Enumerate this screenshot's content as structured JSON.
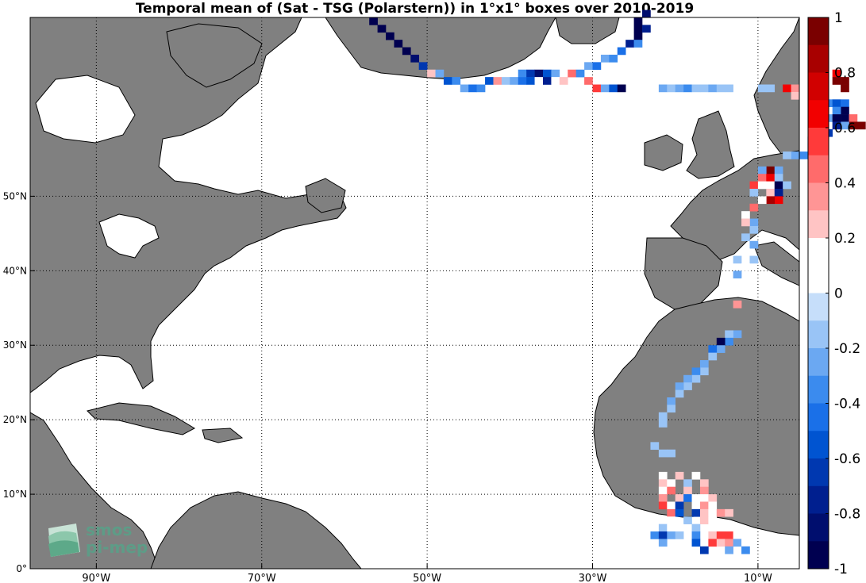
{
  "chart_data": {
    "type": "heatmap",
    "title": "Temporal mean of (Sat - TSG (Polarstern)) in 1°x1° boxes over 2010-2019",
    "xlabel": "",
    "ylabel": "",
    "x_ticks": [
      "90°W",
      "70°W",
      "50°W",
      "30°W",
      "10°W"
    ],
    "y_ticks": [
      "0°",
      "10°N",
      "20°N",
      "30°N",
      "40°N",
      "50°N"
    ],
    "xlim": [
      -98,
      -5
    ],
    "ylim": [
      0,
      74
    ],
    "grid": true,
    "colorbar": {
      "ticks": [
        "1",
        "0.8",
        "0.6",
        "0.4",
        "0.2",
        "0",
        "-0.2",
        "-0.4",
        "-0.6",
        "-0.8",
        "-1"
      ],
      "range": [
        -1,
        1
      ],
      "colors": [
        "#7a0000",
        "#a80000",
        "#d10000",
        "#f20000",
        "#ff3a3a",
        "#ff6b6b",
        "#ff9595",
        "#ffc4c4",
        "#ffffff",
        "#ffffff",
        "#c6defa",
        "#99c4f6",
        "#6ba8f2",
        "#3b8bee",
        "#1a70e8",
        "#0054d1",
        "#0038b0",
        "#001f8f",
        "#000e6e",
        "#000050"
      ]
    },
    "cells": [
      {
        "lon": -57,
        "lat": 73,
        "value": -0.95
      },
      {
        "lon": -56,
        "lat": 72,
        "value": -0.95
      },
      {
        "lon": -55,
        "lat": 71,
        "value": -0.9
      },
      {
        "lon": -54,
        "lat": 70,
        "value": -0.95
      },
      {
        "lon": -53,
        "lat": 69,
        "value": -0.9
      },
      {
        "lon": -52,
        "lat": 68,
        "value": -0.85
      },
      {
        "lon": -51,
        "lat": 67,
        "value": -0.6
      },
      {
        "lon": -50,
        "lat": 66,
        "value": 0.25
      },
      {
        "lon": -49,
        "lat": 66,
        "value": -0.2
      },
      {
        "lon": -48,
        "lat": 65,
        "value": -0.5
      },
      {
        "lon": -47,
        "lat": 65,
        "value": -0.3
      },
      {
        "lon": -46,
        "lat": 64,
        "value": -0.2
      },
      {
        "lon": -45,
        "lat": 64,
        "value": -0.45
      },
      {
        "lon": -44,
        "lat": 64,
        "value": -0.3
      },
      {
        "lon": -43,
        "lat": 65,
        "value": -0.55
      },
      {
        "lon": -42,
        "lat": 65,
        "value": 0.35
      },
      {
        "lon": -41,
        "lat": 65,
        "value": -0.15
      },
      {
        "lon": -40,
        "lat": 65,
        "value": -0.2
      },
      {
        "lon": -39,
        "lat": 66,
        "value": -0.3
      },
      {
        "lon": -38,
        "lat": 66,
        "value": -0.6
      },
      {
        "lon": -37,
        "lat": 66,
        "value": -0.8
      },
      {
        "lon": -36,
        "lat": 66,
        "value": -0.55
      },
      {
        "lon": -35,
        "lat": 66,
        "value": -0.2
      },
      {
        "lon": -39,
        "lat": 65,
        "value": -0.4
      },
      {
        "lon": -38,
        "lat": 65,
        "value": -0.5
      },
      {
        "lon": -37,
        "lat": 65,
        "value": 0.2
      },
      {
        "lon": -36,
        "lat": 65,
        "value": -0.7
      },
      {
        "lon": -35,
        "lat": 65,
        "value": 0.15
      },
      {
        "lon": -34,
        "lat": 65,
        "value": 0.3
      },
      {
        "lon": -33,
        "lat": 66,
        "value": 0.45
      },
      {
        "lon": -32,
        "lat": 66,
        "value": -0.3
      },
      {
        "lon": -31,
        "lat": 65,
        "value": 0.5
      },
      {
        "lon": -30,
        "lat": 64,
        "value": 0.6
      },
      {
        "lon": -29,
        "lat": 64,
        "value": -0.2
      },
      {
        "lon": -28,
        "lat": 64,
        "value": -0.5
      },
      {
        "lon": -27,
        "lat": 64,
        "value": -0.9
      },
      {
        "lon": -31,
        "lat": 67,
        "value": -0.25
      },
      {
        "lon": -30,
        "lat": 67,
        "value": -0.4
      },
      {
        "lon": -29,
        "lat": 68,
        "value": -0.2
      },
      {
        "lon": -28,
        "lat": 68,
        "value": -0.3
      },
      {
        "lon": -27,
        "lat": 69,
        "value": -0.45
      },
      {
        "lon": -26,
        "lat": 70,
        "value": -0.7
      },
      {
        "lon": -25,
        "lat": 71,
        "value": -0.95
      },
      {
        "lon": -25,
        "lat": 72,
        "value": -0.95
      },
      {
        "lon": -24,
        "lat": 72,
        "value": -0.7
      },
      {
        "lon": -25,
        "lat": 73,
        "value": -0.9
      },
      {
        "lon": -24,
        "lat": 74,
        "value": -0.85
      },
      {
        "lon": -25,
        "lat": 70,
        "value": -0.3
      },
      {
        "lon": -22,
        "lat": 64,
        "value": -0.2
      },
      {
        "lon": -21,
        "lat": 64,
        "value": -0.15
      },
      {
        "lon": -20,
        "lat": 64,
        "value": -0.2
      },
      {
        "lon": -19,
        "lat": 64,
        "value": -0.3
      },
      {
        "lon": -18,
        "lat": 64,
        "value": -0.15
      },
      {
        "lon": -17,
        "lat": 64,
        "value": -0.15
      },
      {
        "lon": -16,
        "lat": 64,
        "value": -0.2
      },
      {
        "lon": -15,
        "lat": 64,
        "value": -0.15
      },
      {
        "lon": -14,
        "lat": 64,
        "value": -0.15
      },
      {
        "lon": -10,
        "lat": 64,
        "value": -0.15
      },
      {
        "lon": -9,
        "lat": 64,
        "value": -0.15
      },
      {
        "lon": -7,
        "lat": 64,
        "value": 0.7
      },
      {
        "lon": -6,
        "lat": 64,
        "value": 0.35
      },
      {
        "lon": -6,
        "lat": 63,
        "value": 0.3
      },
      {
        "lon": -1,
        "lat": 66,
        "value": 0.7
      },
      {
        "lon": -1,
        "lat": 65,
        "value": 0.95
      },
      {
        "lon": 0,
        "lat": 65,
        "value": 0.95
      },
      {
        "lon": 0,
        "lat": 64,
        "value": 0.9
      },
      {
        "lon": -2,
        "lat": 62,
        "value": -0.3
      },
      {
        "lon": -1,
        "lat": 62,
        "value": -0.5
      },
      {
        "lon": 0,
        "lat": 62,
        "value": -0.45
      },
      {
        "lon": 0,
        "lat": 61,
        "value": -0.9
      },
      {
        "lon": -1,
        "lat": 61,
        "value": -0.35
      },
      {
        "lon": -2,
        "lat": 60,
        "value": -0.2
      },
      {
        "lon": -1,
        "lat": 60,
        "value": -0.95
      },
      {
        "lon": 0,
        "lat": 60,
        "value": -0.95
      },
      {
        "lon": 1,
        "lat": 60,
        "value": 0.5
      },
      {
        "lon": 2,
        "lat": 59,
        "value": 0.9
      },
      {
        "lon": 1,
        "lat": 59,
        "value": 0.9
      },
      {
        "lon": 0,
        "lat": 59,
        "value": -0.2
      },
      {
        "lon": -1,
        "lat": 59,
        "value": -0.7
      },
      {
        "lon": -2,
        "lat": 58,
        "value": -0.6
      },
      {
        "lon": -3,
        "lat": 57,
        "value": -0.5
      },
      {
        "lon": -4,
        "lat": 57,
        "value": -0.3
      },
      {
        "lon": -4,
        "lat": 56,
        "value": -0.4
      },
      {
        "lon": -5,
        "lat": 55,
        "value": -0.3
      },
      {
        "lon": -6,
        "lat": 55,
        "value": -0.2
      },
      {
        "lon": -7,
        "lat": 55,
        "value": -0.15
      },
      {
        "lon": -9,
        "lat": 53,
        "value": 0.95
      },
      {
        "lon": -10,
        "lat": 53,
        "value": -0.2
      },
      {
        "lon": -8,
        "lat": 53,
        "value": -0.2
      },
      {
        "lon": -10,
        "lat": 52,
        "value": 0.5
      },
      {
        "lon": -9,
        "lat": 52,
        "value": 0.7
      },
      {
        "lon": -8,
        "lat": 52,
        "value": -0.15
      },
      {
        "lon": -11,
        "lat": 51,
        "value": 0.6
      },
      {
        "lon": -10,
        "lat": 51,
        "value": 0.2
      },
      {
        "lon": -9,
        "lat": 51,
        "value": 0.2
      },
      {
        "lon": -8,
        "lat": 51,
        "value": -0.95
      },
      {
        "lon": -7,
        "lat": 51,
        "value": -0.15
      },
      {
        "lon": -9,
        "lat": 50,
        "value": 0.3
      },
      {
        "lon": -8,
        "lat": 50,
        "value": -0.7
      },
      {
        "lon": -11,
        "lat": 50,
        "value": -0.15
      },
      {
        "lon": -8,
        "lat": 49,
        "value": 0.7
      },
      {
        "lon": -9,
        "lat": 49,
        "value": 0.85
      },
      {
        "lon": -10,
        "lat": 49,
        "value": 0.2
      },
      {
        "lon": -11,
        "lat": 48,
        "value": 0.5
      },
      {
        "lon": -12,
        "lat": 47,
        "value": 0.2
      },
      {
        "lon": -11,
        "lat": 46,
        "value": -0.2
      },
      {
        "lon": -12,
        "lat": 46,
        "value": 0.3
      },
      {
        "lon": -11,
        "lat": 45,
        "value": -0.15
      },
      {
        "lon": -12,
        "lat": 44,
        "value": -0.15
      },
      {
        "lon": -11,
        "lat": 43,
        "value": -0.2
      },
      {
        "lon": -12,
        "lat": 42,
        "value": 0.2
      },
      {
        "lon": -13,
        "lat": 41,
        "value": -0.15
      },
      {
        "lon": -11,
        "lat": 41,
        "value": -0.15
      },
      {
        "lon": -12,
        "lat": 40,
        "value": 0.2
      },
      {
        "lon": -13,
        "lat": 39,
        "value": -0.2
      },
      {
        "lon": -12,
        "lat": 38,
        "value": 0.15
      },
      {
        "lon": -13,
        "lat": 37,
        "value": 0.2
      },
      {
        "lon": -13,
        "lat": 35,
        "value": 0.4
      },
      {
        "lon": -13,
        "lat": 31,
        "value": -0.2
      },
      {
        "lon": -14,
        "lat": 31,
        "value": -0.15
      },
      {
        "lon": -14,
        "lat": 30,
        "value": -0.3
      },
      {
        "lon": -15,
        "lat": 30,
        "value": -0.9
      },
      {
        "lon": -15,
        "lat": 29,
        "value": -0.2
      },
      {
        "lon": -16,
        "lat": 29,
        "value": -0.45
      },
      {
        "lon": -16,
        "lat": 28,
        "value": -0.15
      },
      {
        "lon": -17,
        "lat": 27,
        "value": -0.2
      },
      {
        "lon": -17,
        "lat": 26,
        "value": -0.15
      },
      {
        "lon": -18,
        "lat": 26,
        "value": -0.3
      },
      {
        "lon": -18,
        "lat": 25,
        "value": -0.15
      },
      {
        "lon": -19,
        "lat": 25,
        "value": -0.25
      },
      {
        "lon": -19,
        "lat": 24,
        "value": -0.15
      },
      {
        "lon": -20,
        "lat": 24,
        "value": -0.2
      },
      {
        "lon": -20,
        "lat": 23,
        "value": -0.15
      },
      {
        "lon": -21,
        "lat": 22,
        "value": -0.2
      },
      {
        "lon": -21,
        "lat": 21,
        "value": -0.15
      },
      {
        "lon": -22,
        "lat": 20,
        "value": -0.15
      },
      {
        "lon": -22,
        "lat": 19,
        "value": -0.15
      },
      {
        "lon": -23,
        "lat": 16,
        "value": -0.15
      },
      {
        "lon": -22,
        "lat": 15,
        "value": -0.15
      },
      {
        "lon": -21,
        "lat": 15,
        "value": -0.15
      },
      {
        "lon": -22,
        "lat": 12,
        "value": 0.2
      },
      {
        "lon": -20,
        "lat": 12,
        "value": 0.25
      },
      {
        "lon": -18,
        "lat": 12,
        "value": 0.2
      },
      {
        "lon": -22,
        "lat": 11,
        "value": 0.3
      },
      {
        "lon": -21,
        "lat": 11,
        "value": 0.2
      },
      {
        "lon": -19,
        "lat": 11,
        "value": -0.15
      },
      {
        "lon": -17,
        "lat": 11,
        "value": 0.25
      },
      {
        "lon": -22,
        "lat": 10,
        "value": 0.15
      },
      {
        "lon": -21,
        "lat": 10,
        "value": 0.5
      },
      {
        "lon": -19,
        "lat": 10,
        "value": 0.3
      },
      {
        "lon": -17,
        "lat": 10,
        "value": 0.4
      },
      {
        "lon": -22,
        "lat": 9,
        "value": 0.4
      },
      {
        "lon": -20,
        "lat": 9,
        "value": 0.3
      },
      {
        "lon": -19,
        "lat": 9,
        "value": -0.45
      },
      {
        "lon": -18,
        "lat": 9,
        "value": 0.2
      },
      {
        "lon": -17,
        "lat": 9,
        "value": 0.2
      },
      {
        "lon": -16,
        "lat": 9,
        "value": 0.3
      },
      {
        "lon": -22,
        "lat": 8,
        "value": 0.6
      },
      {
        "lon": -21,
        "lat": 8,
        "value": 0.2
      },
      {
        "lon": -20,
        "lat": 8,
        "value": -0.6
      },
      {
        "lon": -18,
        "lat": 8,
        "value": 0.2
      },
      {
        "lon": -17,
        "lat": 8,
        "value": 0.35
      },
      {
        "lon": -16,
        "lat": 8,
        "value": 0.2
      },
      {
        "lon": -21,
        "lat": 7,
        "value": 0.45
      },
      {
        "lon": -20,
        "lat": 7,
        "value": -0.5
      },
      {
        "lon": -18,
        "lat": 7,
        "value": -0.6
      },
      {
        "lon": -17,
        "lat": 7,
        "value": 0.3
      },
      {
        "lon": -16,
        "lat": 7,
        "value": 0.2
      },
      {
        "lon": -15,
        "lat": 7,
        "value": 0.4
      },
      {
        "lon": -14,
        "lat": 7,
        "value": 0.3
      },
      {
        "lon": -21,
        "lat": 6,
        "value": 0.2
      },
      {
        "lon": -19,
        "lat": 6,
        "value": -0.15
      },
      {
        "lon": -17,
        "lat": 6,
        "value": 0.25
      },
      {
        "lon": -16,
        "lat": 6,
        "value": 0.15
      },
      {
        "lon": -22,
        "lat": 5,
        "value": -0.15
      },
      {
        "lon": -21,
        "lat": 5,
        "value": 0.15
      },
      {
        "lon": -20,
        "lat": 5,
        "value": 0.2
      },
      {
        "lon": -18,
        "lat": 5,
        "value": -0.15
      },
      {
        "lon": -23,
        "lat": 4,
        "value": -0.3
      },
      {
        "lon": -22,
        "lat": 4,
        "value": -0.6
      },
      {
        "lon": -21,
        "lat": 4,
        "value": -0.2
      },
      {
        "lon": -20,
        "lat": 4,
        "value": -0.15
      },
      {
        "lon": -18,
        "lat": 4,
        "value": -0.3
      },
      {
        "lon": -16,
        "lat": 4,
        "value": 0.3
      },
      {
        "lon": -15,
        "lat": 4,
        "value": 0.55
      },
      {
        "lon": -14,
        "lat": 4,
        "value": 0.6
      },
      {
        "lon": -13,
        "lat": 4,
        "value": 0.2
      },
      {
        "lon": -22,
        "lat": 3,
        "value": -0.2
      },
      {
        "lon": -18,
        "lat": 3,
        "value": -0.5
      },
      {
        "lon": -16,
        "lat": 3,
        "value": 0.6
      },
      {
        "lon": -15,
        "lat": 3,
        "value": 0.3
      },
      {
        "lon": -14,
        "lat": 3,
        "value": 0.35
      },
      {
        "lon": -13,
        "lat": 3,
        "value": -0.2
      },
      {
        "lon": -12,
        "lat": 3,
        "value": 0.15
      },
      {
        "lon": -17,
        "lat": 2,
        "value": -0.6
      },
      {
        "lon": -14,
        "lat": 2,
        "value": -0.2
      },
      {
        "lon": -12,
        "lat": 2,
        "value": -0.3
      }
    ]
  },
  "logo": {
    "line1": "smos",
    "line2": "pi-mep"
  },
  "colors": {
    "land": "#808080",
    "ocean": "#ffffff"
  }
}
